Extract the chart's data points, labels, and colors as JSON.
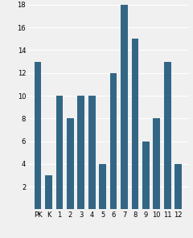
{
  "categories": [
    "PK",
    "K",
    "1",
    "2",
    "3",
    "4",
    "5",
    "6",
    "7",
    "8",
    "9",
    "10",
    "11",
    "12"
  ],
  "values": [
    13,
    3,
    10,
    8,
    10,
    10,
    4,
    12,
    18,
    15,
    6,
    8,
    13,
    4
  ],
  "bar_color": "#336685",
  "ylim": [
    0,
    18
  ],
  "yticks": [
    2,
    4,
    6,
    8,
    10,
    12,
    14,
    16,
    18
  ],
  "background_color": "#f0f0f0",
  "tick_fontsize": 6.0,
  "bar_width": 0.65
}
